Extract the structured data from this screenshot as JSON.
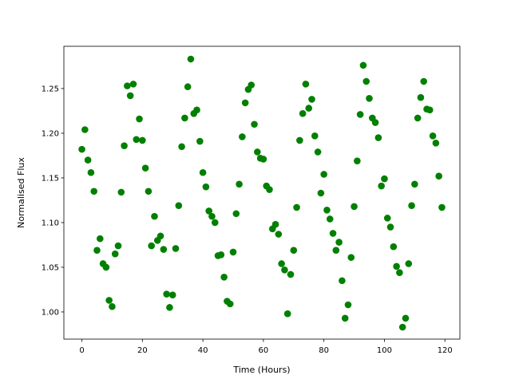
{
  "chart_data": {
    "type": "scatter",
    "xlabel": "Time (Hours)",
    "ylabel": "Normalised Flux",
    "color": "#008000",
    "grid": false,
    "x": [
      0,
      1,
      2,
      3,
      4,
      5,
      6,
      7,
      8,
      9,
      10,
      11,
      12,
      13,
      14,
      15,
      16,
      17,
      18,
      19,
      20,
      21,
      22,
      23,
      24,
      25,
      26,
      27,
      28,
      29,
      30,
      31,
      32,
      33,
      34,
      35,
      36,
      37,
      38,
      39,
      40,
      41,
      42,
      43,
      44,
      45,
      46,
      47,
      48,
      49,
      50,
      51,
      52,
      53,
      54,
      55,
      56,
      57,
      58,
      59,
      60,
      61,
      62,
      63,
      64,
      65,
      66,
      67,
      68,
      69,
      70,
      71,
      72,
      73,
      74,
      75,
      76,
      77,
      78,
      79,
      80,
      81,
      82,
      83,
      84,
      85,
      86,
      87,
      88,
      89,
      90,
      91,
      92,
      93,
      94,
      95,
      96,
      97,
      98,
      99,
      100,
      101,
      102,
      103,
      104,
      105,
      106,
      107,
      108,
      109,
      110,
      111,
      112,
      113,
      114,
      115,
      116,
      117,
      118,
      119
    ],
    "values": [
      1.182,
      1.204,
      1.17,
      1.156,
      1.135,
      1.069,
      1.082,
      1.054,
      1.05,
      1.013,
      1.006,
      1.065,
      1.074,
      1.134,
      1.186,
      1.253,
      1.242,
      1.255,
      1.193,
      1.216,
      1.192,
      1.161,
      1.135,
      1.074,
      1.107,
      1.08,
      1.085,
      1.07,
      1.02,
      1.005,
      1.019,
      1.071,
      1.119,
      1.185,
      1.217,
      1.252,
      1.283,
      1.222,
      1.226,
      1.191,
      1.156,
      1.14,
      1.113,
      1.107,
      1.1,
      1.063,
      1.064,
      1.039,
      1.012,
      1.009,
      1.067,
      1.11,
      1.143,
      1.196,
      1.234,
      1.249,
      1.254,
      1.21,
      1.179,
      1.172,
      1.171,
      1.141,
      1.137,
      1.093,
      1.098,
      1.087,
      1.054,
      1.047,
      0.998,
      1.042,
      1.069,
      1.117,
      1.192,
      1.222,
      1.255,
      1.228,
      1.238,
      1.197,
      1.179,
      1.133,
      1.154,
      1.114,
      1.104,
      1.088,
      1.069,
      1.078,
      1.035,
      0.993,
      1.008,
      1.061,
      1.118,
      1.169,
      1.221,
      1.276,
      1.258,
      1.239,
      1.217,
      1.212,
      1.195,
      1.141,
      1.149,
      1.105,
      1.095,
      1.073,
      1.051,
      1.044,
      0.983,
      0.993,
      1.054,
      1.119,
      1.143,
      1.217,
      1.24,
      1.258,
      1.227,
      1.226,
      1.197,
      1.189,
      1.152,
      1.117
    ],
    "xlim": [
      -5.95,
      124.95
    ],
    "ylim": [
      0.9696,
      1.2973
    ],
    "xticks": [
      0,
      20,
      40,
      60,
      80,
      100,
      120
    ],
    "yticks": [
      {
        "value": 1.0,
        "label": "1.00"
      },
      1.05,
      {
        "value": 1.1,
        "label": "1.10"
      },
      1.15,
      {
        "value": 1.2,
        "label": "1.20"
      },
      1.25
    ]
  }
}
